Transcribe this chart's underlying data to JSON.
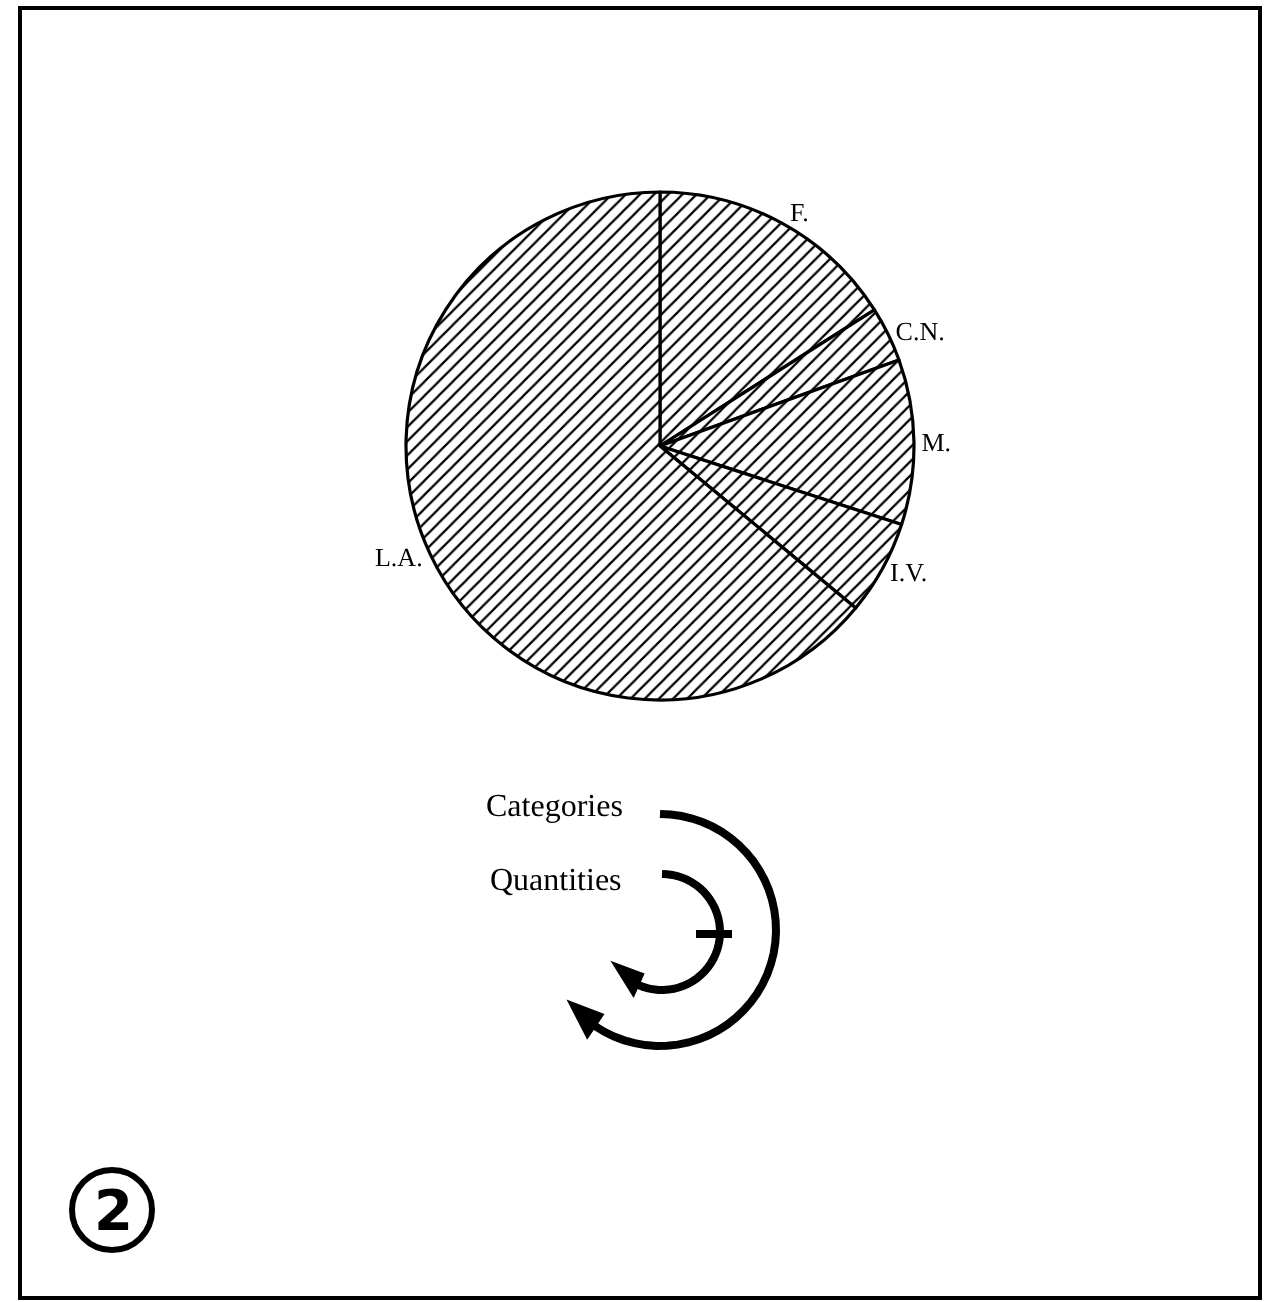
{
  "chart_data": {
    "type": "pie",
    "categories": [
      "F.",
      "C.N.",
      "M.",
      "I.V.",
      "L.A."
    ],
    "values": [
      16,
      3.5,
      10.5,
      6,
      64
    ],
    "colors": [
      "#000000",
      "#000000",
      "#000000",
      "#000000",
      "#000000"
    ],
    "annotations": [
      "Categories",
      "Quantities",
      "2"
    ]
  }
}
